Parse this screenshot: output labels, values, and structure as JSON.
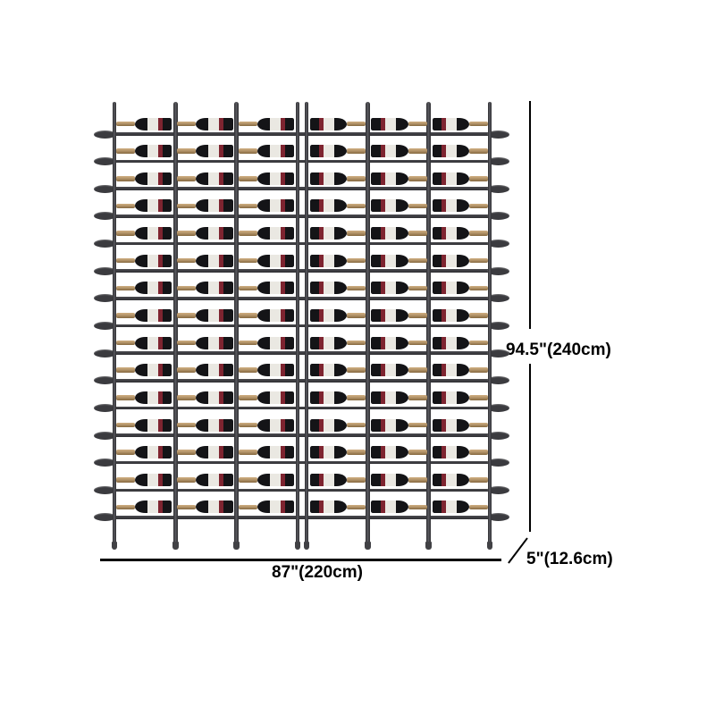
{
  "dimensions": {
    "height": "94.5\"(240cm)",
    "width": "87\"(220cm)",
    "depth": "5\"(12.6cm)"
  },
  "rack": {
    "rows": 15,
    "sections": 2,
    "columns_per_section": 3,
    "total_columns": 6,
    "bottle_count": 90
  },
  "colors": {
    "frame": "#3a3a3e",
    "bottle_body": "#141417",
    "bottle_label": "#eae8e2",
    "bottle_label_accent": "#7e2430",
    "bottle_neck_foil": "#b3946a",
    "dimension_line": "#000000",
    "background": "#ffffff"
  }
}
